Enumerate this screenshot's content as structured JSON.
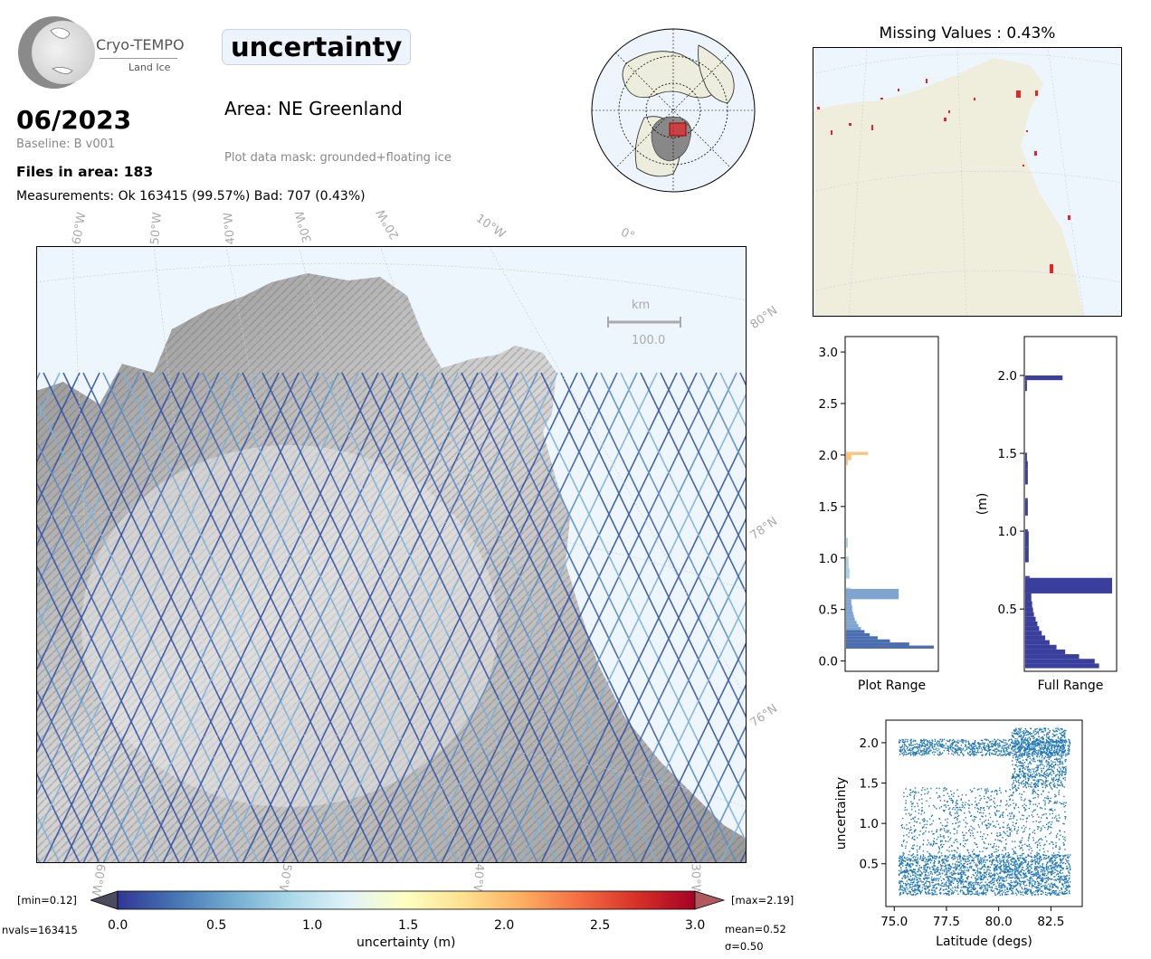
{
  "header": {
    "logo_text": "Cryo-TEMPO",
    "logo_subtext": "Land Ice",
    "date": "06/2023",
    "baseline": "Baseline: B v001",
    "files_in_area": "Files in area: 183",
    "measurements": "Measurements: Ok 163415 (99.57%) Bad: 707 (0.43%)",
    "parameter_title": "uncertainty",
    "area": "Area: NE Greenland",
    "mask": "Plot data mask: grounded+floating ice"
  },
  "map": {
    "longitude_labels": [
      "60°W",
      "50°W",
      "40°W",
      "30°W",
      "20°W",
      "10°W",
      "0°"
    ],
    "latitude_labels": [
      "80°N",
      "78°N",
      "76°N"
    ],
    "bottom_longitude_labels": [
      "60°W",
      "50°W",
      "40°W",
      "30°W"
    ],
    "scalebar_unit": "km",
    "scalebar_value": "100.0",
    "colors": {
      "ocean": "#eef6fd",
      "land": "#b8b8b8",
      "track": "#3452a4"
    }
  },
  "colorbar": {
    "min_label": "[min=0.12]",
    "max_label": "[max=2.19]",
    "nvals": "nvals=163415",
    "mean": "mean=0.52",
    "sigma": "σ=0.50",
    "label": "uncertainty (m)",
    "ticks": [
      "0.0",
      "0.5",
      "1.0",
      "1.5",
      "2.0",
      "2.5",
      "3.0"
    ],
    "colors": [
      "#313695",
      "#4575b4",
      "#74add1",
      "#abd9e9",
      "#e0f3f8",
      "#ffffbf",
      "#fee090",
      "#fdae61",
      "#f46d43",
      "#d73027",
      "#a50026"
    ]
  },
  "missing_panel": {
    "title": "Missing Values : 0.43%",
    "colors": {
      "land": "#efeedc",
      "ocean": "#eef6fd",
      "missing": "#e8222a"
    }
  },
  "chart_data": [
    {
      "type": "bar",
      "orientation": "horizontal",
      "xlabel": "Plot Range",
      "ylabel": "",
      "ylim": [
        -0.1,
        3.15
      ],
      "yticks": [
        "0.0",
        "0.5",
        "1.0",
        "1.5",
        "2.0",
        "2.5",
        "3.0"
      ],
      "bins": [
        0.12,
        0.15,
        0.18,
        0.21,
        0.24,
        0.27,
        0.3,
        0.33,
        0.36,
        0.39,
        0.42,
        0.45,
        0.48,
        0.51,
        0.54,
        0.57,
        0.6,
        0.7,
        0.8,
        0.9,
        1.0,
        1.1,
        1.9,
        1.95,
        2.0
      ],
      "counts": [
        1.0,
        0.72,
        0.5,
        0.36,
        0.27,
        0.21,
        0.17,
        0.14,
        0.12,
        0.1,
        0.09,
        0.08,
        0.07,
        0.07,
        0.06,
        0.06,
        0.6,
        0.05,
        0.04,
        0.03,
        0.03,
        0.02,
        0.02,
        0.06,
        0.25
      ]
    },
    {
      "type": "bar",
      "orientation": "horizontal",
      "xlabel": "Full Range",
      "ylabel": "(m)",
      "ylim": [
        0.1,
        2.25
      ],
      "yticks": [
        "0.5",
        "1.0",
        "1.5",
        "2.0"
      ],
      "bins": [
        0.12,
        0.15,
        0.18,
        0.21,
        0.24,
        0.27,
        0.3,
        0.33,
        0.36,
        0.39,
        0.42,
        0.45,
        0.48,
        0.51,
        0.55,
        0.6,
        0.7,
        0.8,
        0.9,
        1.0,
        1.1,
        1.2,
        1.3,
        1.4,
        1.45,
        1.9,
        1.95,
        1.97
      ],
      "counts": [
        0.85,
        0.8,
        0.62,
        0.46,
        0.36,
        0.28,
        0.23,
        0.19,
        0.16,
        0.14,
        0.12,
        0.1,
        0.09,
        0.08,
        0.07,
        1.0,
        0.05,
        0.04,
        0.04,
        0.03,
        0.03,
        0.03,
        0.03,
        0.03,
        0.02,
        0.02,
        0.02,
        0.43
      ]
    },
    {
      "type": "scatter",
      "xlabel": "Latitude (degs)",
      "ylabel": "uncertainty",
      "xlim": [
        74.6,
        84.0
      ],
      "ylim": [
        -0.03,
        2.28
      ],
      "xticks": [
        "75.0",
        "77.5",
        "80.0",
        "82.5"
      ],
      "yticks": [
        "0.5",
        "1.0",
        "1.5",
        "2.0"
      ],
      "color": "#1f77b4",
      "bands": [
        {
          "x_range": [
            75.2,
            83.4
          ],
          "y_range": [
            0.12,
            0.62
          ],
          "density": "high"
        },
        {
          "x_range": [
            75.3,
            83.2
          ],
          "y_range": [
            0.62,
            1.45
          ],
          "density": "medium"
        },
        {
          "x_range": [
            75.2,
            83.4
          ],
          "y_range": [
            1.85,
            2.05
          ],
          "density": "medium"
        },
        {
          "x_range": [
            80.6,
            83.2
          ],
          "y_range": [
            1.45,
            2.19
          ],
          "density": "medium"
        }
      ]
    }
  ]
}
